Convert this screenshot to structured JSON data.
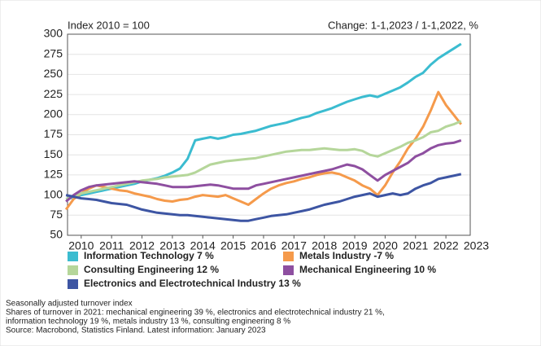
{
  "chart_data": {
    "type": "line",
    "title": "Index 2010 = 100",
    "subtitle": "Change: 1-1,2023 / 1-1,2022, %",
    "x": [
      2010,
      2010.25,
      2010.5,
      2010.75,
      2011,
      2011.25,
      2011.5,
      2011.75,
      2012,
      2012.25,
      2012.5,
      2012.75,
      2013,
      2013.25,
      2013.5,
      2013.75,
      2014,
      2014.25,
      2014.5,
      2014.75,
      2015,
      2015.25,
      2015.5,
      2015.75,
      2016,
      2016.25,
      2016.5,
      2016.75,
      2017,
      2017.25,
      2017.5,
      2017.75,
      2018,
      2018.25,
      2018.5,
      2018.75,
      2019,
      2019.25,
      2019.5,
      2019.75,
      2020,
      2020.25,
      2020.5,
      2020.75,
      2021,
      2021.25,
      2021.5,
      2021.75,
      2022,
      2022.25,
      2022.5,
      2022.75,
      2023
    ],
    "series": [
      {
        "name": "Information Technology 7 %",
        "color": "#3bbcd0",
        "values": [
          95,
          97,
          100,
          102,
          104,
          106,
          108,
          110,
          112,
          114,
          117,
          119,
          121,
          124,
          128,
          133,
          145,
          168,
          170,
          172,
          170,
          172,
          175,
          176,
          178,
          180,
          183,
          186,
          188,
          190,
          193,
          196,
          198,
          202,
          205,
          208,
          212,
          216,
          219,
          222,
          224,
          222,
          226,
          230,
          234,
          240,
          247,
          252,
          262,
          270,
          276,
          282,
          288
        ]
      },
      {
        "name": "Metals Industry -7 %",
        "color": "#f59a4b",
        "values": [
          82,
          95,
          102,
          108,
          112,
          110,
          108,
          106,
          105,
          102,
          100,
          98,
          95,
          93,
          92,
          94,
          95,
          98,
          100,
          99,
          98,
          100,
          96,
          92,
          88,
          95,
          102,
          108,
          112,
          115,
          117,
          120,
          122,
          125,
          127,
          128,
          126,
          122,
          118,
          112,
          108,
          100,
          112,
          128,
          142,
          158,
          170,
          185,
          205,
          228,
          212,
          200,
          188
        ]
      },
      {
        "name": "Consulting Engineering 12 %",
        "color": "#b5d69a",
        "values": [
          95,
          98,
          102,
          104,
          106,
          108,
          110,
          112,
          114,
          116,
          118,
          119,
          120,
          122,
          123,
          124,
          125,
          128,
          133,
          138,
          140,
          142,
          143,
          144,
          145,
          146,
          148,
          150,
          152,
          154,
          155,
          156,
          156,
          157,
          158,
          157,
          156,
          156,
          157,
          155,
          150,
          148,
          152,
          156,
          160,
          165,
          168,
          172,
          178,
          180,
          185,
          188,
          192
        ]
      },
      {
        "name": "Mechanical Engineering 10 %",
        "color": "#8e4fa0",
        "values": [
          92,
          100,
          106,
          110,
          112,
          113,
          114,
          115,
          116,
          117,
          116,
          115,
          114,
          112,
          110,
          110,
          110,
          111,
          112,
          113,
          112,
          110,
          108,
          108,
          108,
          112,
          114,
          116,
          118,
          120,
          122,
          124,
          126,
          128,
          130,
          132,
          135,
          138,
          136,
          132,
          125,
          118,
          125,
          130,
          135,
          140,
          148,
          152,
          158,
          162,
          164,
          165,
          168
        ]
      },
      {
        "name": "Electronics and Electrotechnical Industry 13 %",
        "color": "#3d55a3",
        "values": [
          100,
          98,
          96,
          95,
          94,
          92,
          90,
          89,
          88,
          85,
          82,
          80,
          78,
          77,
          76,
          75,
          75,
          74,
          73,
          72,
          71,
          70,
          69,
          68,
          68,
          70,
          72,
          74,
          75,
          76,
          78,
          80,
          82,
          85,
          88,
          90,
          92,
          95,
          98,
          100,
          102,
          98,
          100,
          102,
          100,
          102,
          108,
          112,
          115,
          120,
          122,
          124,
          126
        ]
      }
    ],
    "xlim": [
      2010.05,
      2023.3
    ],
    "xticks": [
      {
        "value": 2010.5,
        "label": "2010"
      },
      {
        "value": 2011.5,
        "label": "2011"
      },
      {
        "value": 2012.5,
        "label": "2012"
      },
      {
        "value": 2013.5,
        "label": "2013"
      },
      {
        "value": 2014.5,
        "label": "2014"
      },
      {
        "value": 2015.5,
        "label": "2015"
      },
      {
        "value": 2016.5,
        "label": "2016"
      },
      {
        "value": 2017.5,
        "label": "2017"
      },
      {
        "value": 2018.5,
        "label": "2018"
      },
      {
        "value": 2019.5,
        "label": "2019"
      },
      {
        "value": 2020.5,
        "label": "2020"
      },
      {
        "value": 2021.5,
        "label": "2021"
      },
      {
        "value": 2022.5,
        "label": "2022"
      },
      {
        "value": 2023.5,
        "label": "2023"
      }
    ],
    "ylim": [
      50,
      300
    ],
    "yticks": [
      50,
      75,
      100,
      125,
      150,
      175,
      200,
      225,
      250,
      275,
      300
    ],
    "grid": true,
    "notes": [
      "Seasonally adjusted turnover index",
      "Shares of turnover in 2021: mechanical engineering 39 %, electronics and electrotechnical industry 21 %,",
      "information technology 19 %, metals industry 13 %, consulting engineering 8 %",
      "Source: Macrobond, Statistics Finland. Latest information: January 2023"
    ]
  }
}
